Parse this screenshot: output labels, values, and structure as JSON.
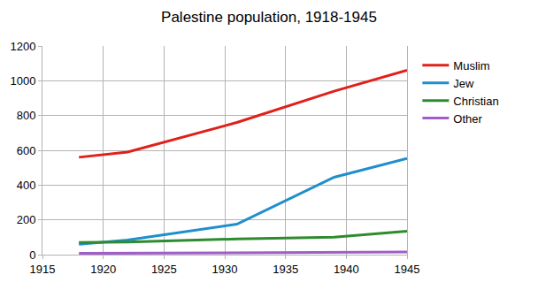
{
  "chart_data": {
    "type": "line",
    "title": "Palestine population, 1918-1945",
    "x": [
      1918,
      1922,
      1931,
      1939,
      1945
    ],
    "series": [
      {
        "name": "Muslim",
        "color": "#e0201b",
        "values": [
          560,
          590,
          760,
          940,
          1060
        ]
      },
      {
        "name": "Jew",
        "color": "#1f8fcb",
        "values": [
          60,
          84,
          175,
          445,
          553
        ]
      },
      {
        "name": "Christian",
        "color": "#2e8b2e",
        "values": [
          70,
          73,
          90,
          100,
          135
        ]
      },
      {
        "name": "Other",
        "color": "#a05ec8",
        "values": [
          7,
          8,
          10,
          12,
          15
        ]
      }
    ],
    "xlim": [
      1915,
      1945
    ],
    "xticks": [
      1915,
      1920,
      1925,
      1930,
      1935,
      1940,
      1945
    ],
    "ylim": [
      0,
      1200
    ],
    "yticks": [
      0,
      200,
      400,
      600,
      800,
      1000,
      1200
    ],
    "grid": true,
    "legend": "right"
  }
}
